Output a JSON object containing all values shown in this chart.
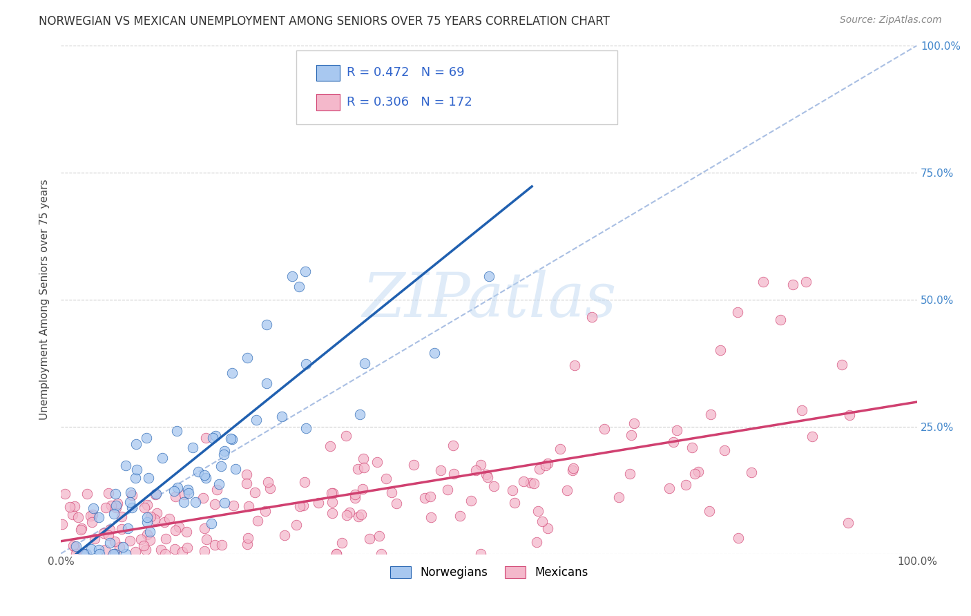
{
  "title": "NORWEGIAN VS MEXICAN UNEMPLOYMENT AMONG SENIORS OVER 75 YEARS CORRELATION CHART",
  "source": "Source: ZipAtlas.com",
  "ylabel": "Unemployment Among Seniors over 75 years",
  "xlim": [
    0.0,
    1.0
  ],
  "ylim": [
    0.0,
    1.0
  ],
  "legend_labels": [
    "Norwegians",
    "Mexicans"
  ],
  "norwegian_color": "#a8c8f0",
  "mexican_color": "#f4b8cb",
  "norwegian_line_color": "#2060b0",
  "mexican_line_color": "#d04070",
  "diagonal_color": "#a0b8e0",
  "R_norwegian": 0.472,
  "N_norwegian": 69,
  "R_mexican": 0.306,
  "N_mexican": 172,
  "watermark_text": "ZIPatlas",
  "title_fontsize": 12,
  "axis_fontsize": 11,
  "right_tick_color": "#4488cc",
  "stats_text_color": "#3366cc"
}
